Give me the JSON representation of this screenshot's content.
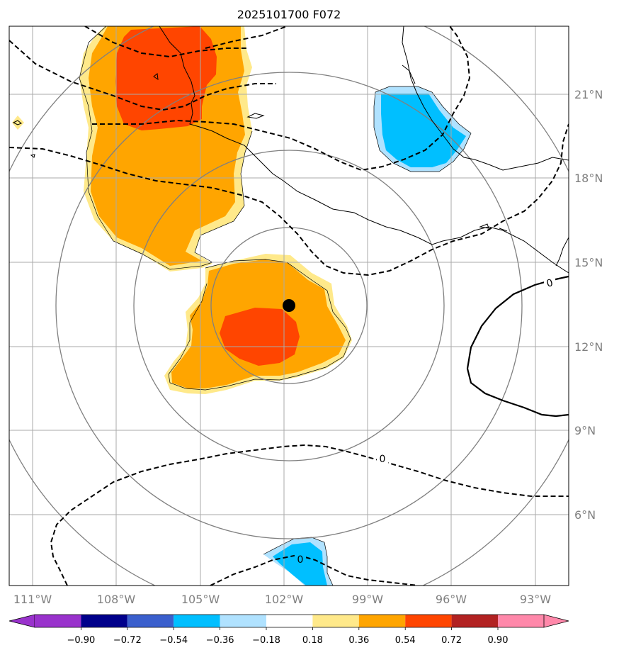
{
  "title": "2025101700 F072",
  "map": {
    "lon_ticks": [
      "111°W",
      "108°W",
      "105°W",
      "102°W",
      "99°W",
      "96°W",
      "93°W"
    ],
    "lat_ticks": [
      "21°N",
      "18°N",
      "15°N",
      "12°N",
      "9°N",
      "6°N"
    ],
    "contour_labels": [
      "0",
      "0",
      "0"
    ],
    "storm_center": {
      "lon": -102.0,
      "lat": 13.4
    }
  },
  "colorbar": {
    "ticks": [
      "−0.90",
      "−0.72",
      "−0.54",
      "−0.36",
      "−0.18",
      "0.18",
      "0.36",
      "0.54",
      "0.72",
      "0.90"
    ],
    "colors": [
      "#9932cc",
      "#00008b",
      "#3a5fcd",
      "#00bfff",
      "#b0e2ff",
      "#ffffff",
      "#ffe98a",
      "#ffa500",
      "#ff4500",
      "#b22222",
      "#ff88aa"
    ]
  },
  "colors": {
    "orange": "#ffa500",
    "red_orange": "#ff4500",
    "light_yellow": "#ffe98a",
    "deep_sky_blue": "#00bfff",
    "light_blue": "#b0e2ff",
    "grid": "#aaaaaa",
    "rings": "#808080"
  }
}
